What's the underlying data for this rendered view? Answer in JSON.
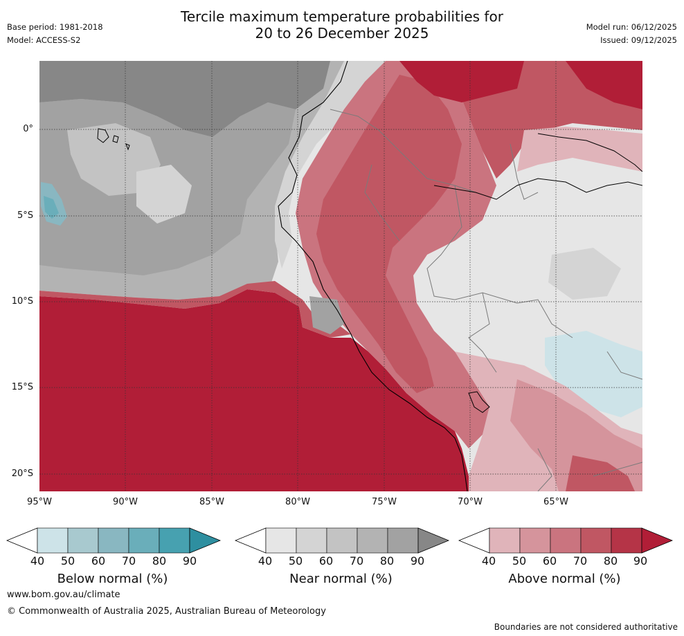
{
  "title": {
    "line1": "Tercile maximum temperature probabilities for",
    "line2": "20 to 26 December 2025"
  },
  "meta": {
    "base_period": "Base period: 1981-2018",
    "model": "Model: ACCESS-S2",
    "model_run": "Model run: 06/12/2025",
    "issued": "Issued: 09/12/2025"
  },
  "map": {
    "lat_labels": [
      "0°",
      "5°S",
      "10°S",
      "15°S",
      "20°S"
    ],
    "lon_labels": [
      "95°W",
      "90°W",
      "85°W",
      "80°W",
      "75°W",
      "70°W",
      "65°W"
    ]
  },
  "colorbars": {
    "ticks": [
      "40",
      "50",
      "60",
      "70",
      "80",
      "90"
    ],
    "below": {
      "title": "Below normal (%)",
      "colors": [
        "#cde3e8",
        "#a8c9cf",
        "#89b7c1",
        "#6aaeba",
        "#47a1b0",
        "#2e8fa0"
      ]
    },
    "near": {
      "title": "Near normal (%)",
      "colors": [
        "#e6e6e6",
        "#d4d4d4",
        "#c3c3c3",
        "#b3b3b3",
        "#a2a2a2",
        "#878787"
      ]
    },
    "above": {
      "title": "Above normal (%)",
      "colors": [
        "#e0b4ba",
        "#d5949c",
        "#ca747f",
        "#c05763",
        "#b53447",
        "#b11e37"
      ]
    }
  },
  "footer": {
    "url": "www.bom.gov.au/climate",
    "copyright": "© Commonwealth of Australia 2025, Australian Bureau of Meteorology",
    "disclaimer": "Boundaries are not considered authoritative"
  }
}
